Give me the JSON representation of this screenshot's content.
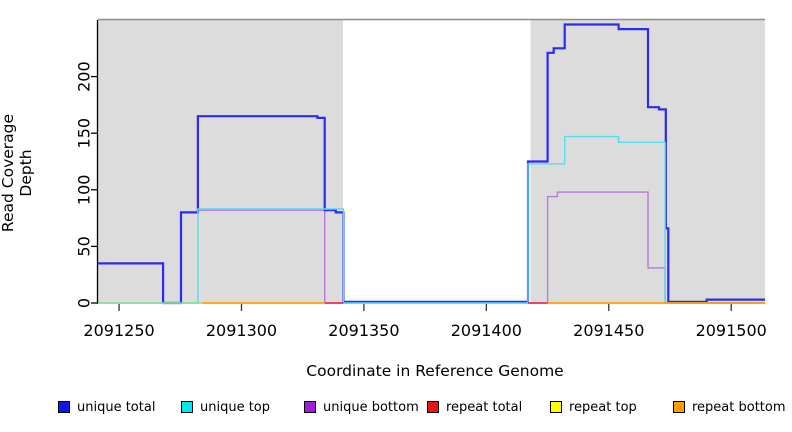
{
  "axes": {
    "x_label": "Coordinate in Reference Genome",
    "y_label": "Read Coverage Depth"
  },
  "legend": {
    "items": [
      {
        "label": "unique total",
        "color": "#1414EE"
      },
      {
        "label": "unique top",
        "color": "#00E8F0"
      },
      {
        "label": "unique bottom",
        "color": "#A21ED6"
      },
      {
        "label": "repeat total",
        "color": "#EE1111"
      },
      {
        "label": "repeat top",
        "color": "#FFFF00"
      },
      {
        "label": "repeat bottom",
        "color": "#FF9E00"
      }
    ]
  },
  "chart_data": {
    "type": "line",
    "subtype": "step-after",
    "title": "",
    "xlabel": "Coordinate in Reference Genome",
    "ylabel": "Read Coverage Depth",
    "xlim": [
      2091241.4,
      2091513.8
    ],
    "ylim": [
      0,
      250
    ],
    "xticks": [
      2091250,
      2091300,
      2091350,
      2091400,
      2091450,
      2091500
    ],
    "yticks": [
      0,
      50,
      100,
      150,
      200
    ],
    "grid": false,
    "legend_position": "bottom",
    "plot_bg": "#FFFFFF",
    "shaded_region_color": "#DCDCDC",
    "shaded_regions": [
      {
        "x0": 2091241.4,
        "x1": 2091341.5
      },
      {
        "x0": 2091418.0,
        "x1": 2091513.8
      }
    ],
    "series": [
      {
        "name": "unique bottom",
        "color": "#B878DE",
        "width": 1.4,
        "segments": [
          [
            [
              2091241.4,
              35
            ],
            [
              2091268,
              0
            ],
            [
              2091275.3,
              80
            ],
            [
              2091282.2,
              82
            ],
            [
              2091334,
              0
            ],
            [
              2091425,
              94
            ],
            [
              2091429,
              98
            ],
            [
              2091466,
              31
            ],
            [
              2091473,
              0
            ],
            [
              2091513.8,
              0
            ]
          ]
        ]
      },
      {
        "name": "unique total",
        "color": "#2B2BEF",
        "width": 2.2,
        "segments": [
          [
            [
              2091241.4,
              35
            ],
            [
              2091268,
              0
            ],
            [
              2091275.3,
              80
            ],
            [
              2091282.2,
              165
            ],
            [
              2091331,
              163.5
            ],
            [
              2091334,
              82
            ],
            [
              2091338.5,
              80
            ],
            [
              2091341.6,
              1
            ],
            [
              2091417,
              125
            ],
            [
              2091425,
              221
            ],
            [
              2091427.5,
              225
            ],
            [
              2091432,
              246
            ],
            [
              2091454,
              242
            ],
            [
              2091466,
              173
            ],
            [
              2091470.5,
              171
            ],
            [
              2091473.3,
              66
            ],
            [
              2091474.3,
              1
            ],
            [
              2091490,
              3
            ],
            [
              2091513.8,
              3
            ]
          ]
        ]
      },
      {
        "name": "unique top",
        "color": "#55DDEE",
        "width": 1.4,
        "segments": [
          [
            [
              2091241.4,
              0
            ],
            [
              2091282.2,
              83
            ],
            [
              2091341.6,
              0
            ],
            [
              2091417,
              123
            ],
            [
              2091432,
              147
            ],
            [
              2091454,
              142
            ],
            [
              2091473,
              0
            ],
            [
              2091513.8,
              0
            ]
          ]
        ]
      },
      {
        "name": "repeat total",
        "color": "#EE2244",
        "width": 1.6,
        "segments": [
          [
            [
              2091334,
              0
            ],
            [
              2091341.6,
              0
            ]
          ],
          [
            [
              2091417,
              0
            ],
            [
              2091425,
              0
            ]
          ]
        ]
      },
      {
        "name": "repeat top",
        "color": "#8FD98F",
        "width": 1.6,
        "segments": [
          [
            [
              2091241.4,
              0
            ],
            [
              2091284,
              0
            ]
          ]
        ]
      },
      {
        "name": "repeat bottom",
        "color": "#FF9E00",
        "width": 1.8,
        "segments": [
          [
            [
              2091284,
              0
            ],
            [
              2091334,
              0
            ]
          ],
          [
            [
              2091425,
              0
            ],
            [
              2091513.8,
              0
            ]
          ]
        ]
      }
    ]
  }
}
